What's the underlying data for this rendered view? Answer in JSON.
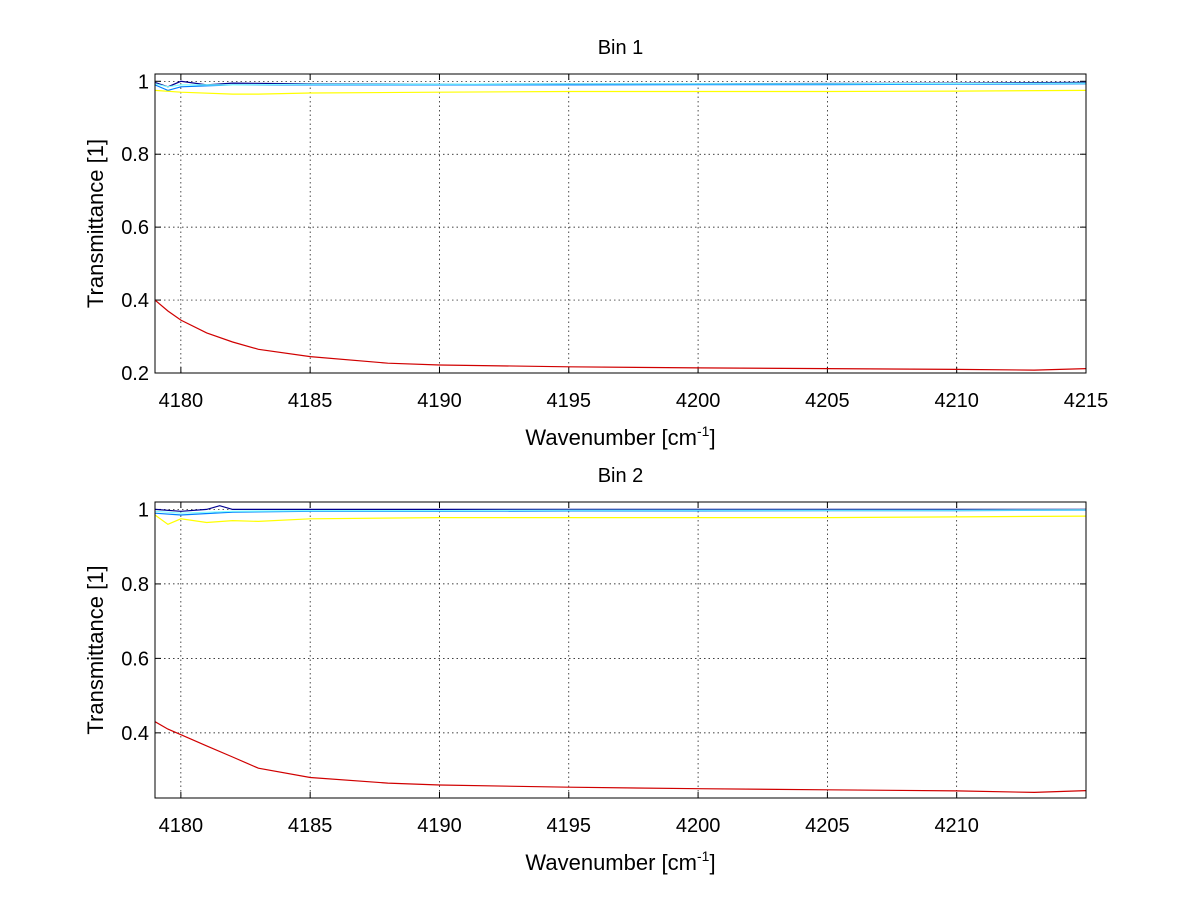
{
  "chart_data": [
    {
      "type": "line",
      "title": "Bin 1",
      "xlabel": "Wavenumber [cm",
      "xlabel_sup": "-1",
      "xlabel_suffix": "]",
      "ylabel": "Transmittance [1]",
      "xlim": [
        4179,
        4215
      ],
      "ylim": [
        0.2,
        1.02
      ],
      "xticks": [
        4180,
        4185,
        4190,
        4195,
        4200,
        4205,
        4210,
        4215
      ],
      "yticks": [
        0.2,
        0.4,
        0.6,
        0.8,
        1
      ],
      "ytick_labels": [
        "0.2",
        "0.4",
        "0.6",
        "0.8",
        "1"
      ],
      "grid": true,
      "series": [
        {
          "color": "#00008f",
          "x": [
            4179,
            4179.5,
            4180,
            4181,
            4182,
            4185,
            4190,
            4195,
            4200,
            4205,
            4210,
            4215
          ],
          "y": [
            0.997,
            0.985,
            1.0,
            0.99,
            0.995,
            0.993,
            0.992,
            0.993,
            0.993,
            0.994,
            0.995,
            0.997
          ]
        },
        {
          "color": "#0080ff",
          "x": [
            4179,
            4179.5,
            4180,
            4182,
            4185,
            4190,
            4195,
            4200,
            4205,
            4210,
            4215
          ],
          "y": [
            0.99,
            0.975,
            0.985,
            0.99,
            0.99,
            0.99,
            0.99,
            0.991,
            0.991,
            0.992,
            0.993
          ]
        },
        {
          "color": "#80ffff",
          "x": [
            4179,
            4179.5,
            4180,
            4182,
            4185,
            4190,
            4195,
            4200,
            4205,
            4210,
            4215
          ],
          "y": [
            0.993,
            0.985,
            0.99,
            0.99,
            0.992,
            0.992,
            0.993,
            0.993,
            0.993,
            0.994,
            0.995
          ]
        },
        {
          "color": "#ffff00",
          "x": [
            4179,
            4180,
            4182,
            4183,
            4185,
            4190,
            4195,
            4200,
            4205,
            4210,
            4215
          ],
          "y": [
            0.975,
            0.97,
            0.965,
            0.965,
            0.968,
            0.97,
            0.972,
            0.972,
            0.972,
            0.973,
            0.975
          ]
        },
        {
          "color": "#d00000",
          "x": [
            4179,
            4179.5,
            4180,
            4181,
            4182,
            4183,
            4185,
            4188,
            4190,
            4195,
            4200,
            4205,
            4210,
            4213,
            4215
          ],
          "y": [
            0.4,
            0.37,
            0.345,
            0.31,
            0.285,
            0.265,
            0.245,
            0.227,
            0.222,
            0.217,
            0.214,
            0.212,
            0.21,
            0.208,
            0.212
          ]
        }
      ]
    },
    {
      "type": "line",
      "title": "Bin 2",
      "xlabel": "Wavenumber [cm",
      "xlabel_sup": "-1",
      "xlabel_suffix": "]",
      "ylabel": "Transmittance [1]",
      "xlim": [
        4179,
        4215
      ],
      "ylim": [
        0.225,
        1.02
      ],
      "xticks": [
        4180,
        4185,
        4190,
        4195,
        4200,
        4205,
        4210
      ],
      "yticks": [
        0.4,
        0.6,
        0.8,
        1
      ],
      "ytick_labels": [
        "0.4",
        "0.6",
        "0.8",
        "1"
      ],
      "grid": true,
      "series": [
        {
          "color": "#00008f",
          "x": [
            4179,
            4180,
            4181,
            4181.5,
            4182,
            4185,
            4190,
            4195,
            4200,
            4205,
            4210,
            4215
          ],
          "y": [
            1.0,
            0.995,
            1.0,
            1.01,
            1.0,
            1.0,
            1.0,
            1.0,
            1.0,
            1.0,
            1.0,
            1.0
          ]
        },
        {
          "color": "#0080ff",
          "x": [
            4179,
            4180,
            4182,
            4185,
            4190,
            4195,
            4200,
            4205,
            4210,
            4215
          ],
          "y": [
            0.99,
            0.985,
            0.993,
            0.995,
            0.995,
            0.996,
            0.996,
            0.997,
            0.997,
            0.998
          ]
        },
        {
          "color": "#80ffff",
          "x": [
            4179,
            4180,
            4182,
            4185,
            4190,
            4195,
            4200,
            4205,
            4210,
            4215
          ],
          "y": [
            0.995,
            0.99,
            0.995,
            0.997,
            0.997,
            0.998,
            0.998,
            0.998,
            0.998,
            0.999
          ]
        },
        {
          "color": "#ffff00",
          "x": [
            4179,
            4179.5,
            4180,
            4181,
            4182,
            4183,
            4185,
            4190,
            4195,
            4200,
            4205,
            4210,
            4215
          ],
          "y": [
            0.985,
            0.96,
            0.975,
            0.965,
            0.97,
            0.968,
            0.975,
            0.978,
            0.978,
            0.978,
            0.978,
            0.98,
            0.982
          ]
        },
        {
          "color": "#d00000",
          "x": [
            4179,
            4179.5,
            4180,
            4181,
            4182,
            4183,
            4185,
            4188,
            4190,
            4195,
            4200,
            4205,
            4210,
            4213,
            4215
          ],
          "y": [
            0.43,
            0.41,
            0.395,
            0.365,
            0.335,
            0.305,
            0.28,
            0.265,
            0.26,
            0.254,
            0.25,
            0.247,
            0.244,
            0.24,
            0.245
          ]
        }
      ]
    }
  ]
}
